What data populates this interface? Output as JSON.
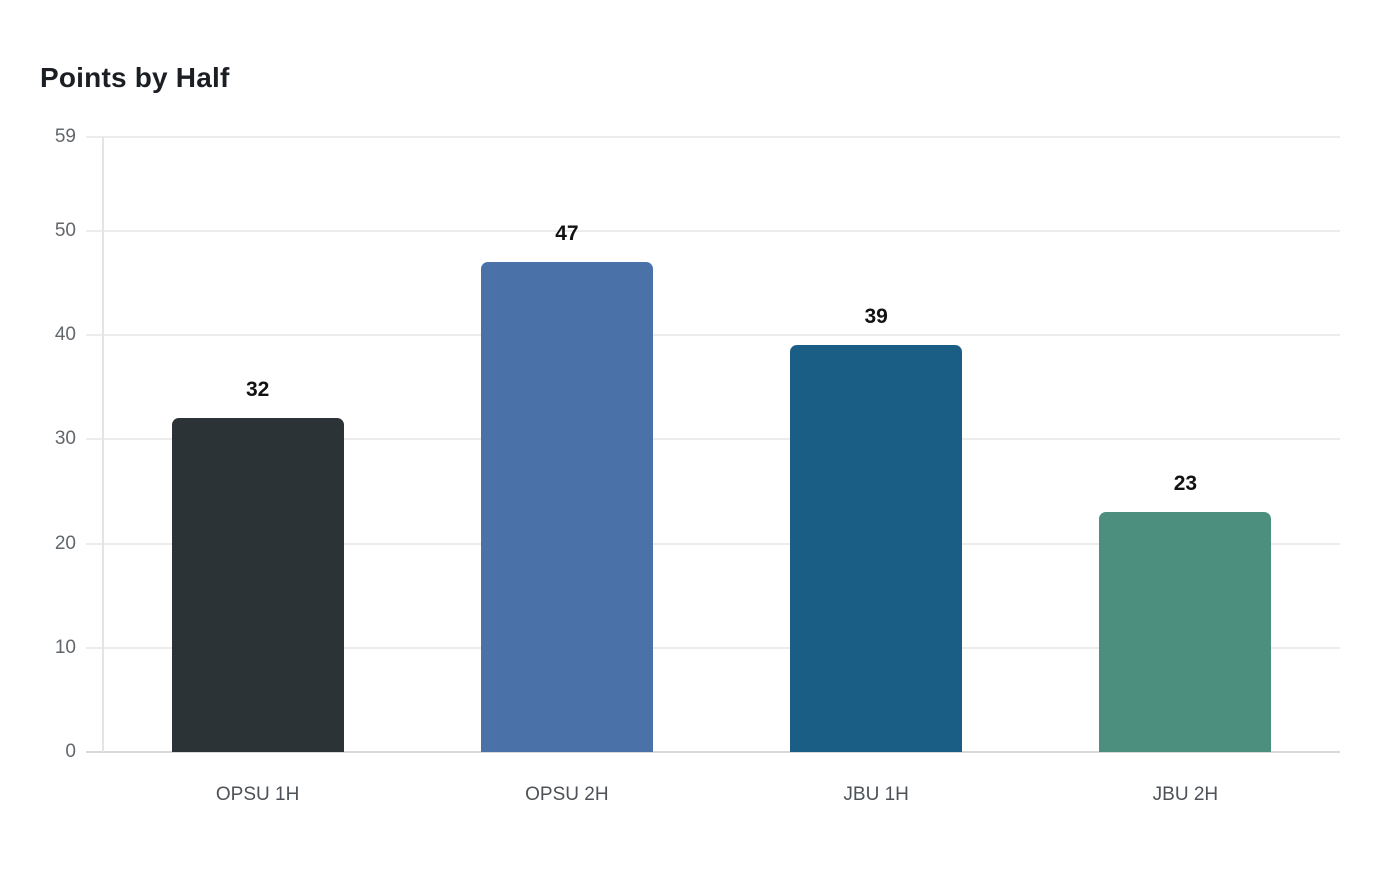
{
  "chart_data": {
    "type": "bar",
    "title": "Points by Half",
    "categories": [
      "OPSU 1H",
      "OPSU 2H",
      "JBU 1H",
      "JBU 2H"
    ],
    "values": [
      32,
      47,
      39,
      23
    ],
    "value_labels": [
      "32",
      "47",
      "39",
      "23"
    ],
    "xlabel": "",
    "ylabel": "",
    "ylim": [
      0,
      59
    ],
    "yticks": [
      0,
      10,
      20,
      30,
      40,
      50,
      59
    ],
    "grid": true,
    "legend": false,
    "bar_colors": [
      "#2b3336",
      "#4a72a8",
      "#1b5e85",
      "#4d8f7e"
    ]
  },
  "style": {
    "title_color": "#1b1f23",
    "value_label_color": "#121212",
    "tick_label_color": "#62676c",
    "x_label_color": "#4c5257",
    "gridline_color": "#ececec",
    "baseline_color": "#d9d9d9",
    "axis_line_color": "#e4e4e4",
    "background_color": "#ffffff"
  }
}
